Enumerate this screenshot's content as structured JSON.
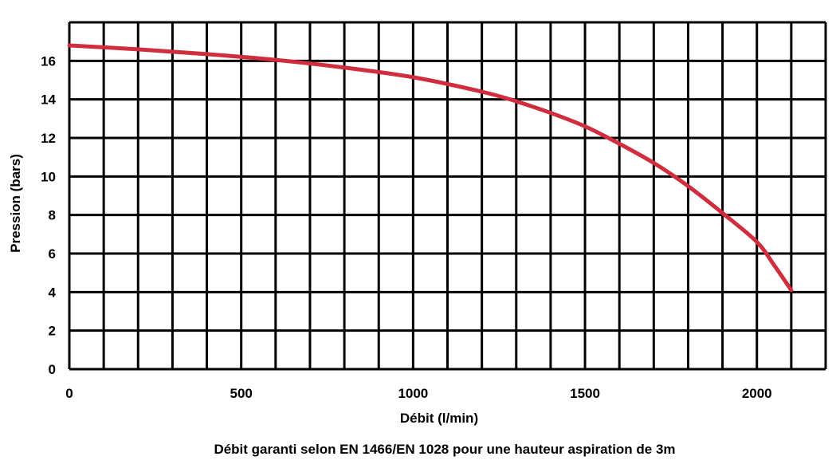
{
  "chart_data": {
    "type": "line",
    "title": "",
    "caption": "Débit garanti selon EN 1466/EN 1028 pour une hauteur aspiration de 3m",
    "xlabel": "Débit (l/min)",
    "ylabel": "Pression (bars)",
    "xlim": [
      0,
      2200
    ],
    "ylim": [
      0,
      18
    ],
    "x_ticks": [
      0,
      500,
      1000,
      1500,
      2000
    ],
    "y_ticks": [
      0,
      2,
      4,
      6,
      8,
      10,
      12,
      14,
      16
    ],
    "x_gridlines": [
      0,
      100,
      200,
      300,
      400,
      500,
      600,
      700,
      800,
      900,
      1000,
      1100,
      1200,
      1300,
      1400,
      1500,
      1600,
      1700,
      1800,
      1900,
      2000,
      2100,
      2200
    ],
    "y_gridlines": [
      0,
      2,
      4,
      6,
      8,
      10,
      12,
      14,
      16,
      18
    ],
    "grid": true,
    "series": [
      {
        "color": "#d02e3e",
        "x": [
          0,
          200,
          400,
          600,
          800,
          1000,
          1200,
          1300,
          1400,
          1500,
          1600,
          1700,
          1800,
          1900,
          2000,
          2050,
          2100
        ],
        "y": [
          16.8,
          16.6,
          16.35,
          16.05,
          15.65,
          15.15,
          14.4,
          13.9,
          13.3,
          12.6,
          11.7,
          10.7,
          9.5,
          8.1,
          6.6,
          5.4,
          4.1
        ]
      }
    ]
  }
}
